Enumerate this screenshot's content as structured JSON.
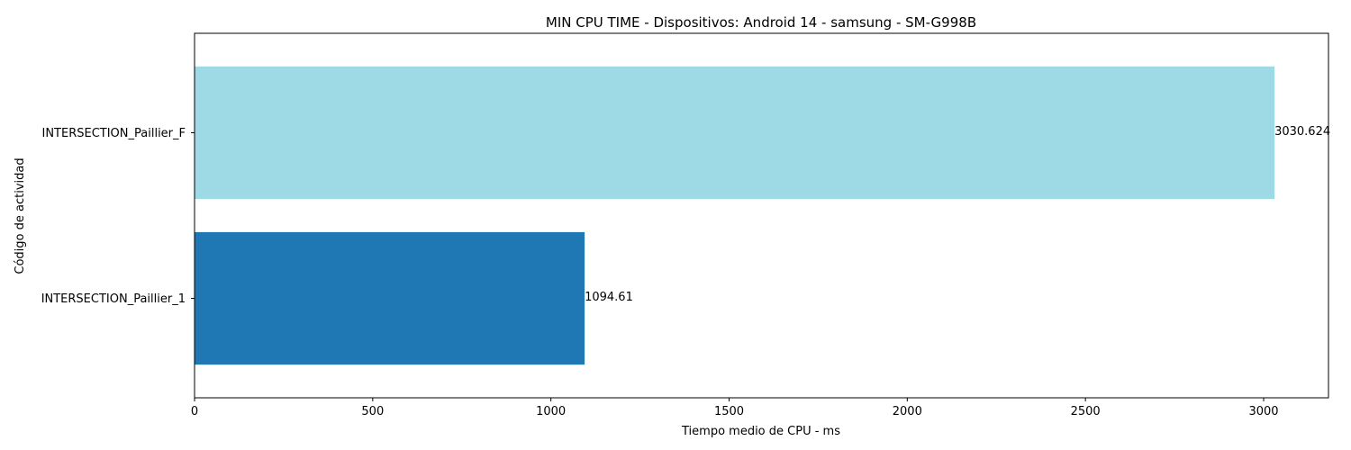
{
  "chart_data": {
    "type": "bar",
    "orientation": "horizontal",
    "title": "MIN CPU TIME - Dispositivos: Android 14 - samsung - SM-G998B",
    "xlabel": "Tiempo medio de CPU - ms",
    "ylabel": "Código de actividad",
    "categories": [
      "INTERSECTION_Paillier_1",
      "INTERSECTION_Paillier_F"
    ],
    "values": [
      1094.61,
      3030.624
    ],
    "value_labels": [
      "1094.61",
      "3030.624"
    ],
    "colors": [
      "#1f77b4",
      "#9edae5"
    ],
    "xlim": [
      0,
      3182
    ],
    "x_ticks": [
      0,
      500,
      1000,
      1500,
      2000,
      2500,
      3000
    ],
    "grid": false
  }
}
